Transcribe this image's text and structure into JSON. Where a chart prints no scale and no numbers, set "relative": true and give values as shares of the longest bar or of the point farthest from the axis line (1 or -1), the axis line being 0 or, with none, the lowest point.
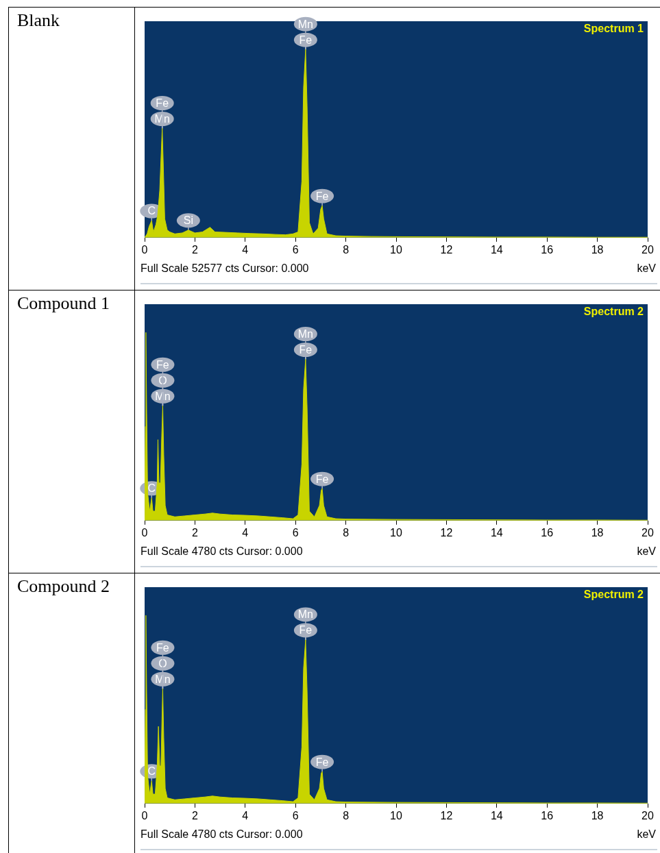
{
  "chart_data": [
    {
      "type": "area",
      "title": "Blank",
      "subtitle": "Spectrum 1",
      "xlabel": "keV",
      "relative": true,
      "legend": false,
      "grid": false,
      "xlim": [
        0,
        20
      ],
      "xticks": [
        0,
        2,
        4,
        6,
        8,
        10,
        12,
        14,
        16,
        18,
        20
      ],
      "x": [
        0,
        0.1,
        0.18,
        0.28,
        0.35,
        0.45,
        0.52,
        0.6,
        0.66,
        0.7,
        0.74,
        0.8,
        0.9,
        1.0,
        1.2,
        1.5,
        1.74,
        2.0,
        2.3,
        2.6,
        2.8,
        3.2,
        3.7,
        4.2,
        4.7,
        5.2,
        5.6,
        5.9,
        6.1,
        6.25,
        6.32,
        6.4,
        6.46,
        6.55,
        6.7,
        6.9,
        7.0,
        7.06,
        7.12,
        7.25,
        7.6,
        8.0,
        9,
        10,
        12,
        14,
        16,
        18,
        20
      ],
      "series": [
        {
          "color": "#c8d400",
          "values": [
            0,
            0.02,
            0.06,
            0.09,
            0.03,
            0.07,
            0.12,
            0.25,
            0.45,
            0.58,
            0.4,
            0.1,
            0.04,
            0.03,
            0.02,
            0.025,
            0.04,
            0.025,
            0.03,
            0.055,
            0.03,
            0.028,
            0.025,
            0.022,
            0.02,
            0.017,
            0.015,
            0.02,
            0.03,
            0.3,
            0.8,
            1,
            0.7,
            0.08,
            0.02,
            0.05,
            0.15,
            0.17,
            0.1,
            0.02,
            0.01,
            0.008,
            0.006,
            0.005,
            0.004,
            0.003,
            0.003,
            0.002,
            0.002
          ]
        }
      ],
      "annotations": [
        {
          "text": "Mn",
          "x": 0.7,
          "y": 0.58
        },
        {
          "text": "Fe",
          "x": 0.7,
          "y": 0.58
        },
        {
          "text": "Fe",
          "x": 6.4,
          "y": 1
        },
        {
          "text": "Mn",
          "x": 6.4,
          "y": 1
        },
        {
          "text": "Fe",
          "x": 7.06,
          "y": 0.17
        },
        {
          "text": "C",
          "x": 0.28,
          "y": 0.09
        },
        {
          "text": "Si",
          "x": 1.74,
          "y": 0.04
        },
        "Full Scale 52577 cts Cursor: 0.000"
      ]
    },
    {
      "type": "area",
      "title": "Compound 1",
      "subtitle": "Spectrum 2",
      "xlabel": "keV",
      "relative": true,
      "legend": false,
      "grid": false,
      "xlim": [
        0,
        20
      ],
      "xticks": [
        0,
        2,
        4,
        6,
        8,
        10,
        12,
        14,
        16,
        18,
        20
      ],
      "x": [
        0,
        0.03,
        0.05,
        0.08,
        0.12,
        0.2,
        0.28,
        0.33,
        0.42,
        0.5,
        0.53,
        0.57,
        0.63,
        0.68,
        0.72,
        0.76,
        0.82,
        0.9,
        1.2,
        1.6,
        2.0,
        2.4,
        2.7,
        3.0,
        3.5,
        4.0,
        4.5,
        5.0,
        5.5,
        5.9,
        6.1,
        6.25,
        6.32,
        6.4,
        6.46,
        6.55,
        6.75,
        6.95,
        7.02,
        7.06,
        7.12,
        7.25,
        7.6,
        8,
        10,
        12,
        14,
        16,
        18,
        20
      ],
      "series": [
        {
          "color": "#c8d400",
          "values": [
            0,
            0.5,
            1,
            0.6,
            0.15,
            0.05,
            0.12,
            0.05,
            0.05,
            0.2,
            0.43,
            0.2,
            0.2,
            0.45,
            0.61,
            0.35,
            0.08,
            0.03,
            0.02,
            0.025,
            0.03,
            0.035,
            0.04,
            0.035,
            0.03,
            0.028,
            0.025,
            0.02,
            0.015,
            0.01,
            0.03,
            0.3,
            0.7,
            0.857,
            0.6,
            0.05,
            0.02,
            0.08,
            0.16,
            0.17,
            0.08,
            0.02,
            0.01,
            0.008,
            0.006,
            0.005,
            0.004,
            0.003,
            0.003,
            0.002
          ]
        }
      ],
      "annotations": [
        {
          "text": "Mn",
          "x": 0.72,
          "y": 0.61
        },
        {
          "text": "O",
          "x": 0.72,
          "y": 0.61
        },
        {
          "text": "Fe",
          "x": 0.72,
          "y": 0.61
        },
        {
          "text": "Fe",
          "x": 6.4,
          "y": 0.857
        },
        {
          "text": "Mn",
          "x": 6.4,
          "y": 0.857
        },
        {
          "text": "Fe",
          "x": 7.06,
          "y": 0.17
        },
        {
          "text": "C",
          "x": 0.28,
          "y": 0.12
        },
        "Full Scale 4780 cts Cursor: 0.000"
      ]
    },
    {
      "type": "area",
      "title": "Compound 2",
      "subtitle": "Spectrum 2",
      "xlabel": "keV",
      "relative": true,
      "legend": false,
      "grid": false,
      "xlim": [
        0,
        20
      ],
      "xticks": [
        0,
        2,
        4,
        6,
        8,
        10,
        12,
        14,
        16,
        18,
        20
      ],
      "x": [
        0,
        0.03,
        0.05,
        0.08,
        0.12,
        0.2,
        0.28,
        0.33,
        0.42,
        0.5,
        0.55,
        0.6,
        0.65,
        0.69,
        0.72,
        0.76,
        0.82,
        0.9,
        1.2,
        1.6,
        2.0,
        2.4,
        2.7,
        3.0,
        3.5,
        4.0,
        4.5,
        5.0,
        5.5,
        5.9,
        6.1,
        6.25,
        6.32,
        6.4,
        6.46,
        6.55,
        6.75,
        6.95,
        7.02,
        7.06,
        7.12,
        7.25,
        7.6,
        8,
        10,
        12,
        14,
        16,
        18,
        20
      ],
      "series": [
        {
          "color": "#c8d400",
          "values": [
            0,
            0.5,
            1,
            0.6,
            0.15,
            0.05,
            0.12,
            0.05,
            0.05,
            0.2,
            0.41,
            0.2,
            0.2,
            0.45,
            0.61,
            0.35,
            0.08,
            0.03,
            0.02,
            0.025,
            0.03,
            0.035,
            0.04,
            0.035,
            0.03,
            0.028,
            0.025,
            0.02,
            0.015,
            0.01,
            0.03,
            0.3,
            0.72,
            0.87,
            0.6,
            0.05,
            0.02,
            0.08,
            0.16,
            0.17,
            0.08,
            0.02,
            0.01,
            0.008,
            0.006,
            0.005,
            0.004,
            0.003,
            0.003,
            0.002
          ]
        }
      ],
      "annotations": [
        {
          "text": "Mn",
          "x": 0.72,
          "y": 0.61
        },
        {
          "text": "O",
          "x": 0.72,
          "y": 0.61
        },
        {
          "text": "Fe",
          "x": 0.72,
          "y": 0.61
        },
        {
          "text": "Fe",
          "x": 6.4,
          "y": 0.87
        },
        {
          "text": "Mn",
          "x": 6.4,
          "y": 0.87
        },
        {
          "text": "Fe",
          "x": 7.06,
          "y": 0.17
        },
        {
          "text": "C",
          "x": 0.28,
          "y": 0.12
        },
        "Full Scale 4780 cts Cursor: 0.000"
      ]
    }
  ]
}
